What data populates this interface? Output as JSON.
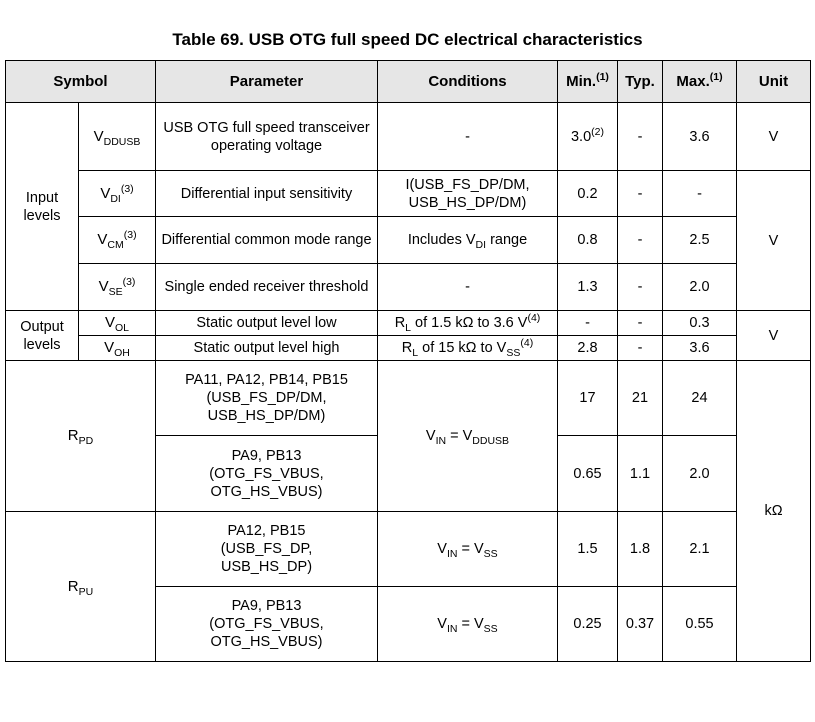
{
  "caption": "Table 69. USB OTG full speed DC electrical characteristics",
  "headers": {
    "symbol": "Symbol",
    "parameter": "Parameter",
    "conditions": "Conditions",
    "min": "Min.",
    "min_note": "(1)",
    "typ": "Typ.",
    "max": "Max.",
    "max_note": "(1)",
    "unit": "Unit"
  },
  "groups": {
    "input_levels": "Input levels",
    "output_levels": "Output levels",
    "rpd": {
      "main": "R",
      "sub": "PD"
    },
    "rpu": {
      "main": "R",
      "sub": "PU"
    }
  },
  "rows": {
    "vddusb": {
      "sym_main": "V",
      "sym_sub": "DDUSB",
      "parameter": "USB OTG full speed transceiver operating voltage",
      "conditions": "-",
      "min": "3.0",
      "min_note": "(2)",
      "typ": "-",
      "max": "3.6",
      "unit": "V"
    },
    "vdi": {
      "sym_main": "V",
      "sym_sub": "DI",
      "sym_note": "(3)",
      "parameter": "Differential input sensitivity",
      "conditions_l1": "I(USB_FS_DP/DM,",
      "conditions_l2": "USB_HS_DP/DM)",
      "min": "0.2",
      "typ": "-",
      "max": "-"
    },
    "vcm": {
      "sym_main": "V",
      "sym_sub": "CM",
      "sym_note": "(3)",
      "parameter": "Differential common mode range",
      "cond_pre": "Includes V",
      "cond_sub": "DI",
      "cond_post": " range",
      "min": "0.8",
      "typ": "-",
      "max": "2.5"
    },
    "vse": {
      "sym_main": "V",
      "sym_sub": "SE",
      "sym_note": "(3)",
      "parameter": "Single ended receiver threshold",
      "conditions": "-",
      "min": "1.3",
      "typ": "-",
      "max": "2.0"
    },
    "input_unit": "V",
    "vol": {
      "sym_main": "V",
      "sym_sub": "OL",
      "parameter": "Static output level low",
      "cond_pre": "R",
      "cond_sub": "L",
      "cond_post": " of 1.5 kΩ to 3.6 V",
      "cond_note": "(4)",
      "min": "-",
      "typ": "-",
      "max": "0.3"
    },
    "voh": {
      "sym_main": "V",
      "sym_sub": "OH",
      "parameter": "Static output level high",
      "cond_pre": "R",
      "cond_sub": "L",
      "cond_mid": " of 15 kΩ to V",
      "cond_sub2": "SS",
      "cond_note": "(4)",
      "min": "2.8",
      "typ": "-",
      "max": "3.6"
    },
    "output_unit": "V",
    "rpd1": {
      "parameter_l1": "PA11, PA12, PB14, PB15",
      "parameter_l2": "(USB_FS_DP/DM,",
      "parameter_l3": "USB_HS_DP/DM)",
      "min": "17",
      "typ": "21",
      "max": "24"
    },
    "rpd_cond": {
      "pre": "V",
      "sub": "IN",
      "mid": " = V",
      "sub2": "DDUSB"
    },
    "rpd2": {
      "parameter_l1": "PA9, PB13",
      "parameter_l2": "(OTG_FS_VBUS,",
      "parameter_l3": "OTG_HS_VBUS)",
      "min": "0.65",
      "typ": "1.1",
      "max": "2.0"
    },
    "resistance_unit": "kΩ",
    "rpu1": {
      "parameter_l1": "PA12, PB15",
      "parameter_l2": "(USB_FS_DP,",
      "parameter_l3": "USB_HS_DP)",
      "cond_pre": "V",
      "cond_sub": "IN",
      "cond_mid": " = V",
      "cond_sub2": "SS",
      "min": "1.5",
      "typ": "1.8",
      "max": "2.1"
    },
    "rpu2": {
      "parameter_l1": "PA9, PB13",
      "parameter_l2": "(OTG_FS_VBUS,",
      "parameter_l3": "OTG_HS_VBUS)",
      "cond_pre": "V",
      "cond_sub": "IN",
      "cond_mid": " = V",
      "cond_sub2": "SS",
      "min": "0.25",
      "typ": "0.37",
      "max": "0.55"
    }
  }
}
